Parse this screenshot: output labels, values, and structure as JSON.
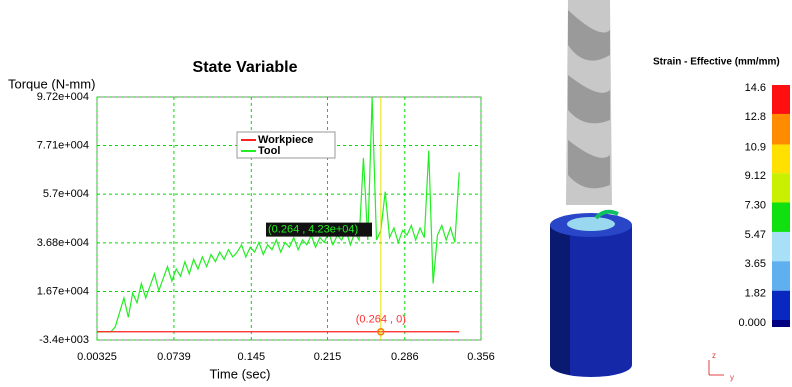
{
  "chart_data": {
    "type": "line",
    "title": "State Variable",
    "y_label": "Torque (N-mm)",
    "x_label": "Time (sec)",
    "xlim": [
      0.00325,
      0.356
    ],
    "xticks": [
      0.00325,
      0.0739,
      0.145,
      0.215,
      0.286,
      0.356
    ],
    "ylim": [
      -3400,
      97200
    ],
    "yticks": [
      {
        "value": -3400,
        "label": "-3.4e+003"
      },
      {
        "value": 16700,
        "label": "1.67e+004"
      },
      {
        "value": 36800,
        "label": "3.68e+004"
      },
      {
        "value": 57000,
        "label": "5.7e+004"
      },
      {
        "value": 77100,
        "label": "7.71e+004"
      },
      {
        "value": 97200,
        "label": "9.72e+004"
      }
    ],
    "grid": true,
    "grid_color": "#00dd00",
    "series": [
      {
        "name": "Workpiece",
        "color": "#ff2020",
        "x": [
          0.00325,
          0.336
        ],
        "values": [
          0,
          0
        ]
      },
      {
        "name": "Tool",
        "color": "#22ee22",
        "x": [
          0.004,
          0.008,
          0.012,
          0.016,
          0.02,
          0.024,
          0.028,
          0.032,
          0.036,
          0.04,
          0.044,
          0.048,
          0.052,
          0.056,
          0.06,
          0.064,
          0.068,
          0.072,
          0.076,
          0.08,
          0.084,
          0.088,
          0.092,
          0.096,
          0.1,
          0.104,
          0.108,
          0.112,
          0.116,
          0.12,
          0.124,
          0.128,
          0.132,
          0.136,
          0.14,
          0.144,
          0.148,
          0.152,
          0.156,
          0.16,
          0.164,
          0.168,
          0.172,
          0.176,
          0.18,
          0.184,
          0.188,
          0.192,
          0.196,
          0.2,
          0.204,
          0.208,
          0.212,
          0.216,
          0.22,
          0.224,
          0.228,
          0.232,
          0.236,
          0.24,
          0.244,
          0.248,
          0.252,
          0.256,
          0.26,
          0.264,
          0.268,
          0.272,
          0.276,
          0.28,
          0.284,
          0.288,
          0.292,
          0.296,
          0.3,
          0.304,
          0.308,
          0.312,
          0.316,
          0.32,
          0.324,
          0.328,
          0.332,
          0.336
        ],
        "values": [
          0,
          0,
          0,
          0,
          2000,
          8000,
          14000,
          6000,
          16000,
          12000,
          20000,
          14000,
          19000,
          24000,
          17000,
          22000,
          27000,
          21000,
          26000,
          23000,
          29000,
          24000,
          30000,
          26000,
          31000,
          27000,
          32000,
          29000,
          33000,
          30000,
          34000,
          31000,
          33000,
          36000,
          31000,
          35000,
          33000,
          37000,
          32000,
          36000,
          34000,
          38000,
          33000,
          37000,
          35000,
          39000,
          34000,
          38000,
          36000,
          40000,
          35000,
          39000,
          37000,
          41000,
          36000,
          40000,
          38000,
          42000,
          36000,
          41000,
          38000,
          72000,
          38000,
          97000,
          38000,
          42000,
          58000,
          39000,
          43000,
          37000,
          42000,
          40000,
          44000,
          38000,
          43000,
          39000,
          75000,
          20000,
          40000,
          44000,
          38000,
          43000,
          37000,
          66000
        ]
      }
    ],
    "legend_position": "top-center",
    "cursor": {
      "x": 0.264,
      "value": 42300,
      "label": "(0.264 , 4.23e+04)",
      "baseline_value": 0,
      "baseline_label": "(0.264 , 0)",
      "color": "#e8e000"
    }
  },
  "colorbar": {
    "title": "Strain - Effective (mm/mm)",
    "ticks": [
      14.6,
      12.8,
      10.9,
      9.12,
      {
        "value": 7.3,
        "label": "7.30"
      },
      5.47,
      3.65,
      1.82,
      {
        "value": 0,
        "label": "0.000"
      }
    ],
    "colors": [
      "#ff1010",
      "#ff8c00",
      "#ffe000",
      "#c8f000",
      "#10e010",
      "#a8e0f8",
      "#60b0f0",
      "#0828c0"
    ],
    "bottom_color": "#000080"
  },
  "axis_triad": [
    "z",
    "y"
  ]
}
